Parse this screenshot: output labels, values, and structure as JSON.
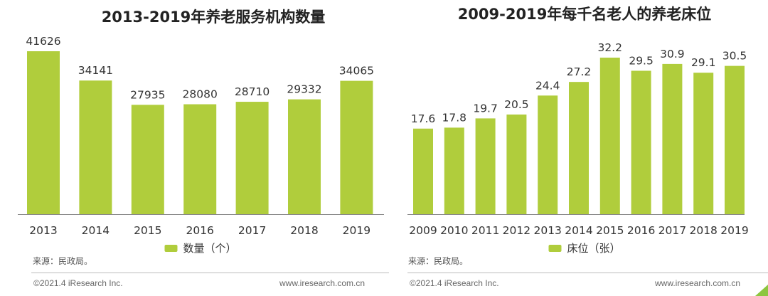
{
  "chart_data": [
    {
      "type": "bar",
      "title": "2013-2019年养老服务机构数量",
      "categories": [
        "2013",
        "2014",
        "2015",
        "2016",
        "2017",
        "2018",
        "2019"
      ],
      "series": [
        {
          "name": "数量（个）",
          "values": [
            41626,
            34141,
            27935,
            28080,
            28710,
            29332,
            34065
          ]
        }
      ],
      "ylim": [
        0,
        41626
      ],
      "legend": "bottom",
      "grid": false,
      "color": "#b0cd3c"
    },
    {
      "type": "bar",
      "title": "2009-2019年每千名老人的养老床位",
      "categories": [
        "2009",
        "2010",
        "2011",
        "2012",
        "2013",
        "2014",
        "2015",
        "2016",
        "2017",
        "2018",
        "2019"
      ],
      "series": [
        {
          "name": "床位（张）",
          "values": [
            17.6,
            17.8,
            19.7,
            20.5,
            24.4,
            27.2,
            32.2,
            29.5,
            30.9,
            29.1,
            30.5
          ]
        }
      ],
      "ylim": [
        0,
        32.2
      ],
      "legend": "bottom",
      "grid": false,
      "color": "#b0cd3c"
    }
  ],
  "left": {
    "source": "来源：民政局。",
    "copyright": "©2021.4 iResearch Inc.",
    "website": "www.iresearch.com.cn"
  },
  "right": {
    "source": "来源：民政局。",
    "copyright": "©2021.4 iResearch Inc.",
    "website": "www.iresearch.com.cn"
  },
  "accent_color": "#b0cd3c"
}
